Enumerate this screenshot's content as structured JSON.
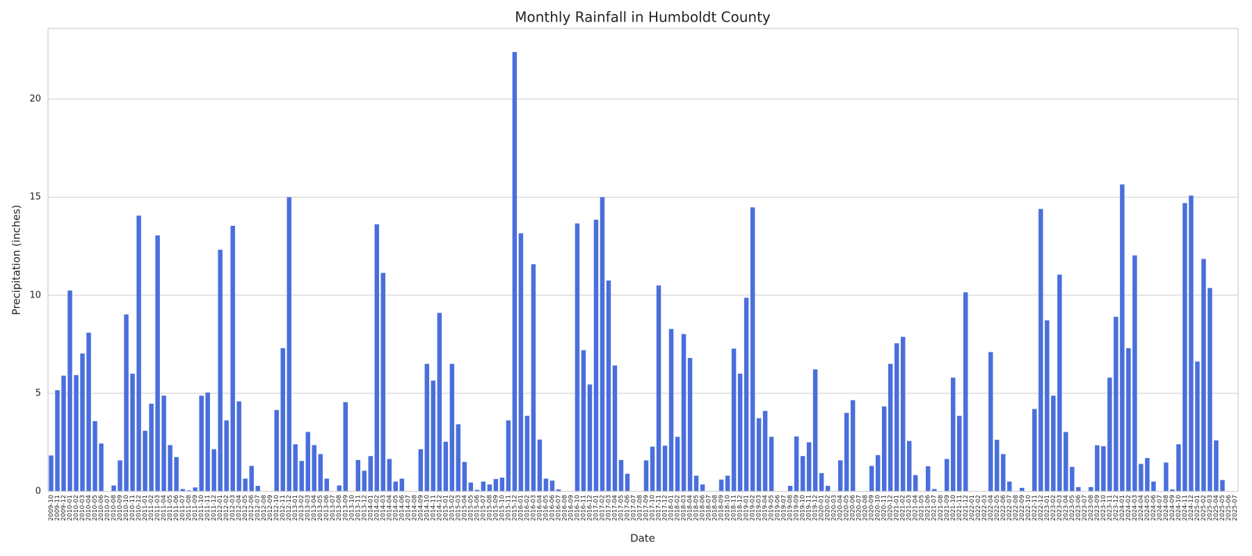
{
  "chart_data": {
    "type": "bar",
    "title": "Monthly Rainfall in Humboldt County",
    "xlabel": "Date",
    "ylabel": "Precipitation (inches)",
    "categories": [
      "2009-10",
      "2009-11",
      "2009-12",
      "2010-01",
      "2010-02",
      "2010-03",
      "2010-04",
      "2010-05",
      "2010-06",
      "2010-07",
      "2010-08",
      "2010-09",
      "2010-10",
      "2010-11",
      "2010-12",
      "2011-01",
      "2011-02",
      "2011-03",
      "2011-04",
      "2011-05",
      "2011-06",
      "2011-07",
      "2011-08",
      "2011-09",
      "2011-10",
      "2011-11",
      "2011-12",
      "2012-01",
      "2012-02",
      "2012-03",
      "2012-04",
      "2012-05",
      "2012-06",
      "2012-07",
      "2012-08",
      "2012-09",
      "2012-10",
      "2012-11",
      "2012-12",
      "2013-01",
      "2013-02",
      "2013-03",
      "2013-04",
      "2013-05",
      "2013-06",
      "2013-07",
      "2013-08",
      "2013-09",
      "2013-10",
      "2013-11",
      "2013-12",
      "2014-01",
      "2014-02",
      "2014-03",
      "2014-04",
      "2014-05",
      "2014-06",
      "2014-07",
      "2014-08",
      "2014-09",
      "2014-10",
      "2014-11",
      "2014-12",
      "2015-01",
      "2015-02",
      "2015-03",
      "2015-04",
      "2015-05",
      "2015-06",
      "2015-07",
      "2015-08",
      "2015-09",
      "2015-10",
      "2015-11",
      "2015-12",
      "2016-01",
      "2016-02",
      "2016-03",
      "2016-04",
      "2016-05",
      "2016-06",
      "2016-07",
      "2016-08",
      "2016-09",
      "2016-10",
      "2016-11",
      "2016-12",
      "2017-01",
      "2017-02",
      "2017-03",
      "2017-04",
      "2017-05",
      "2017-06",
      "2017-07",
      "2017-08",
      "2017-09",
      "2017-10",
      "2017-11",
      "2017-12",
      "2018-01",
      "2018-02",
      "2018-03",
      "2018-04",
      "2018-05",
      "2018-06",
      "2018-07",
      "2018-08",
      "2018-09",
      "2018-10",
      "2018-11",
      "2018-12",
      "2019-01",
      "2019-02",
      "2019-03",
      "2019-04",
      "2019-05",
      "2019-06",
      "2019-07",
      "2019-08",
      "2019-09",
      "2019-10",
      "2019-11",
      "2019-12",
      "2020-01",
      "2020-02",
      "2020-03",
      "2020-04",
      "2020-05",
      "2020-06",
      "2020-07",
      "2020-08",
      "2020-09",
      "2020-10",
      "2020-11",
      "2020-12",
      "2021-01",
      "2021-02",
      "2021-03",
      "2021-04",
      "2021-05",
      "2021-06",
      "2021-07",
      "2021-08",
      "2021-09",
      "2021-10",
      "2021-11",
      "2021-12",
      "2022-01",
      "2022-02",
      "2022-03",
      "2022-04",
      "2022-05",
      "2022-06",
      "2022-07",
      "2022-08",
      "2022-09",
      "2022-10",
      "2022-11",
      "2022-12",
      "2023-01",
      "2023-02",
      "2023-03",
      "2023-04",
      "2023-05",
      "2023-06",
      "2023-07",
      "2023-08",
      "2023-09",
      "2023-10",
      "2023-11",
      "2023-12",
      "2024-01",
      "2024-02",
      "2024-03",
      "2024-04",
      "2024-05",
      "2024-06",
      "2024-07",
      "2024-08",
      "2024-09",
      "2024-10",
      "2024-11",
      "2024-12",
      "2025-01",
      "2025-02",
      "2025-03",
      "2025-04",
      "2025-05",
      "2025-06",
      "2025-07"
    ],
    "values": [
      1.83,
      5.16,
      5.9,
      10.24,
      5.93,
      7.03,
      8.09,
      3.58,
      2.44,
      0,
      0.3,
      1.58,
      9.02,
      6.0,
      14.06,
      3.09,
      4.47,
      13.05,
      4.88,
      2.36,
      1.75,
      0.12,
      0.05,
      0.2,
      4.88,
      5.04,
      2.15,
      12.32,
      3.62,
      13.54,
      4.59,
      0.65,
      1.3,
      0.28,
      0,
      0,
      4.15,
      7.3,
      15.0,
      2.4,
      1.55,
      3.03,
      2.36,
      1.9,
      0.65,
      0,
      0.3,
      4.55,
      0,
      1.6,
      1.05,
      1.8,
      13.62,
      11.14,
      1.65,
      0.5,
      0.65,
      0,
      0,
      2.15,
      6.5,
      5.65,
      9.1,
      2.53,
      6.5,
      3.42,
      1.5,
      0.45,
      0.08,
      0.5,
      0.35,
      0.63,
      0.7,
      3.62,
      22.4,
      13.16,
      3.85,
      11.58,
      2.64,
      0.65,
      0.55,
      0.1,
      0,
      0,
      13.66,
      7.2,
      5.45,
      13.85,
      15.0,
      10.75,
      6.42,
      1.6,
      0.9,
      0,
      0,
      1.58,
      2.28,
      10.5,
      2.33,
      8.28,
      2.78,
      8.02,
      6.8,
      0.8,
      0.35,
      0,
      0,
      0.6,
      0.8,
      7.28,
      6.0,
      9.87,
      14.48,
      3.73,
      4.1,
      2.78,
      0,
      0,
      0.28,
      2.8,
      1.8,
      2.5,
      6.22,
      0.93,
      0.28,
      0,
      1.58,
      4.0,
      4.65,
      0,
      0,
      1.3,
      1.85,
      4.33,
      6.5,
      7.55,
      7.88,
      2.57,
      0.83,
      0,
      1.28,
      0.12,
      0,
      1.65,
      5.8,
      3.85,
      10.15,
      0,
      0,
      0,
      7.1,
      2.63,
      1.9,
      0.5,
      0,
      0.18,
      0,
      4.2,
      14.4,
      8.72,
      4.88,
      11.05,
      3.03,
      1.25,
      0.22,
      0,
      0.22,
      2.35,
      2.3,
      5.8,
      8.9,
      15.65,
      7.3,
      12.03,
      1.4,
      1.7,
      0.5,
      0,
      1.47,
      0.1,
      2.4,
      14.7,
      15.08,
      6.62,
      11.85,
      10.37,
      2.6,
      0.58,
      0,
      0
    ],
    "color": "#4a6fdc",
    "ylim": [
      0,
      23.6
    ],
    "yticks": [
      0,
      5,
      10,
      15,
      20
    ],
    "grid": true
  }
}
